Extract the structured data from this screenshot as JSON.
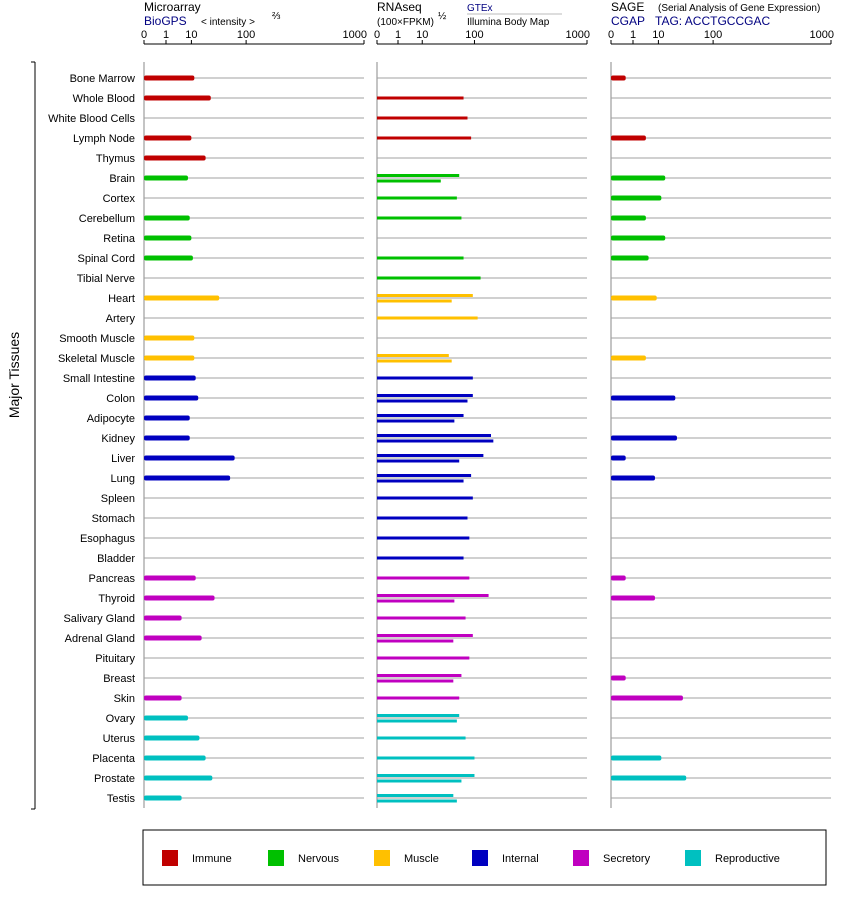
{
  "chart_data": {
    "type": "bar",
    "orientation": "horizontal",
    "side_label": "Major Tissues",
    "tissues": [
      "Bone Marrow",
      "Whole Blood",
      "White Blood Cells",
      "Lymph Node",
      "Thymus",
      "Brain",
      "Cortex",
      "Cerebellum",
      "Retina",
      "Spinal Cord",
      "Tibial Nerve",
      "Heart",
      "Artery",
      "Smooth Muscle",
      "Skeletal Muscle",
      "Small Intestine",
      "Colon",
      "Adipocyte",
      "Kidney",
      "Liver",
      "Lung",
      "Spleen",
      "Stomach",
      "Esophagus",
      "Bladder",
      "Pancreas",
      "Thyroid",
      "Salivary Gland",
      "Adrenal Gland",
      "Pituitary",
      "Breast",
      "Skin",
      "Ovary",
      "Uterus",
      "Placenta",
      "Prostate",
      "Testis"
    ],
    "tissue_groups": [
      "Immune",
      "Immune",
      "Immune",
      "Immune",
      "Immune",
      "Nervous",
      "Nervous",
      "Nervous",
      "Nervous",
      "Nervous",
      "Nervous",
      "Muscle",
      "Muscle",
      "Muscle",
      "Muscle",
      "Internal",
      "Internal",
      "Internal",
      "Internal",
      "Internal",
      "Internal",
      "Internal",
      "Internal",
      "Internal",
      "Internal",
      "Secretory",
      "Secretory",
      "Secretory",
      "Secretory",
      "Secretory",
      "Secretory",
      "Secretory",
      "Reproductive",
      "Reproductive",
      "Reproductive",
      "Reproductive",
      "Reproductive"
    ],
    "group_colors": {
      "Immune": "#c00000",
      "Nervous": "#00c000",
      "Muscle": "#ffc000",
      "Internal": "#0000c0",
      "Secretory": "#c000c0",
      "Reproductive": "#00c0c0"
    },
    "legend": [
      "Immune",
      "Nervous",
      "Muscle",
      "Internal",
      "Secretory",
      "Reproductive"
    ],
    "panels": [
      {
        "key": "microarray",
        "title": "Microarray",
        "subtitle_link": "BioGPS",
        "subtitle_text": "< intensity >",
        "subtitle_exp": "⅔",
        "ticks": [
          "0",
          "1",
          "10",
          "100",
          "1000"
        ],
        "xlim": [
          0,
          1000
        ],
        "values": [
          12,
          28,
          null,
          10,
          22,
          8,
          null,
          9,
          10,
          11,
          null,
          40,
          null,
          12,
          12,
          13,
          15,
          9,
          9,
          70,
          60,
          null,
          null,
          null,
          null,
          13,
          33,
          5,
          18,
          null,
          null,
          5,
          8,
          16,
          22,
          30,
          5
        ]
      },
      {
        "key": "rnaseq",
        "title": "RNAseq",
        "title_sub": "(100×FPKM)",
        "title_exp": "½",
        "source_link": "GTEx",
        "source_text": "Illumina Body Map",
        "ticks": [
          "0",
          "1",
          "10",
          "100",
          "1000"
        ],
        "xlim": [
          0,
          1000
        ],
        "values_gtex": [
          null,
          70,
          80,
          90,
          null,
          60,
          55,
          65,
          null,
          70,
          120,
          95,
          110,
          null,
          40,
          95,
          95,
          70,
          160,
          130,
          90,
          95,
          80,
          85,
          70,
          85,
          150,
          75,
          95,
          85,
          65,
          60,
          60,
          75,
          100,
          100,
          48
        ],
        "values_bodymap": [
          null,
          null,
          null,
          null,
          null,
          28,
          null,
          null,
          null,
          null,
          null,
          45,
          null,
          null,
          45,
          null,
          80,
          50,
          170,
          60,
          70,
          null,
          null,
          null,
          null,
          null,
          50,
          null,
          48,
          null,
          48,
          null,
          55,
          null,
          null,
          65,
          55
        ]
      },
      {
        "key": "sage",
        "title": "SAGE",
        "title_note": "(Serial Analysis of Gene Expression)",
        "tag_link": "CGAP",
        "tag_text": "TAG: ACCTGCCGAC",
        "ticks": [
          "0",
          "1",
          "10",
          "100",
          "1000"
        ],
        "xlim": [
          0,
          1000
        ],
        "values": [
          0.3,
          null,
          null,
          4,
          null,
          15,
          12,
          4,
          15,
          5,
          null,
          9,
          null,
          null,
          4,
          null,
          25,
          null,
          27,
          0.3,
          8,
          null,
          null,
          null,
          null,
          0.3,
          8,
          null,
          null,
          null,
          0.3,
          35,
          null,
          null,
          12,
          40,
          null
        ]
      }
    ]
  }
}
